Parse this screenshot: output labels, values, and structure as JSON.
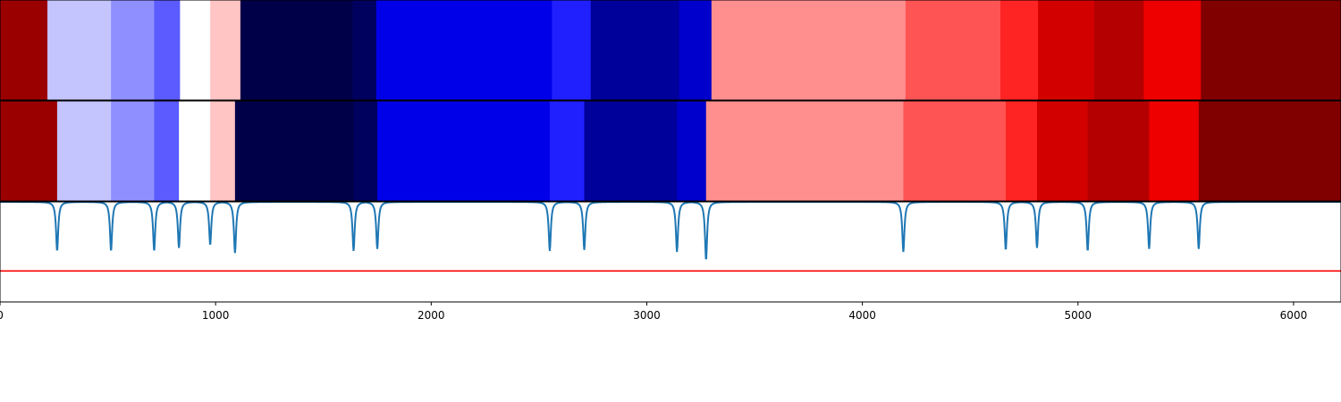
{
  "chart_data": [
    {
      "type": "heatmap",
      "title": "",
      "xlabel": "",
      "ylabel": "",
      "xlim": [
        0,
        6220
      ],
      "colormap": "seismic",
      "segments": [
        {
          "start": 0,
          "end": 220,
          "color": "#9b0000"
        },
        {
          "start": 220,
          "end": 515,
          "color": "#c4c4ff"
        },
        {
          "start": 515,
          "end": 715,
          "color": "#8f8fff"
        },
        {
          "start": 715,
          "end": 835,
          "color": "#5b5bff"
        },
        {
          "start": 835,
          "end": 975,
          "color": "#ffffff"
        },
        {
          "start": 975,
          "end": 1115,
          "color": "#ffc4c4"
        },
        {
          "start": 1115,
          "end": 1635,
          "color": "#000049"
        },
        {
          "start": 1635,
          "end": 1745,
          "color": "#00005f"
        },
        {
          "start": 1745,
          "end": 2560,
          "color": "#0000e8"
        },
        {
          "start": 2560,
          "end": 2740,
          "color": "#2020ff"
        },
        {
          "start": 2740,
          "end": 3150,
          "color": "#00009a"
        },
        {
          "start": 3150,
          "end": 3300,
          "color": "#0000cc"
        },
        {
          "start": 3300,
          "end": 4200,
          "color": "#ff8f8f"
        },
        {
          "start": 4200,
          "end": 4640,
          "color": "#ff5454"
        },
        {
          "start": 4640,
          "end": 4815,
          "color": "#ff2424"
        },
        {
          "start": 4815,
          "end": 5075,
          "color": "#d30000"
        },
        {
          "start": 5075,
          "end": 5305,
          "color": "#b40000"
        },
        {
          "start": 5305,
          "end": 5570,
          "color": "#ee0000"
        },
        {
          "start": 5570,
          "end": 6220,
          "color": "#800000"
        }
      ]
    },
    {
      "type": "heatmap",
      "title": "",
      "xlabel": "",
      "ylabel": "",
      "xlim": [
        0,
        6220
      ],
      "colormap": "seismic",
      "segments": [
        {
          "start": 0,
          "end": 265,
          "color": "#9b0000"
        },
        {
          "start": 265,
          "end": 515,
          "color": "#c4c4ff"
        },
        {
          "start": 515,
          "end": 715,
          "color": "#8f8fff"
        },
        {
          "start": 715,
          "end": 830,
          "color": "#5b5bff"
        },
        {
          "start": 830,
          "end": 975,
          "color": "#ffffff"
        },
        {
          "start": 975,
          "end": 1090,
          "color": "#ffc4c4"
        },
        {
          "start": 1090,
          "end": 1640,
          "color": "#000049"
        },
        {
          "start": 1640,
          "end": 1750,
          "color": "#00005f"
        },
        {
          "start": 1750,
          "end": 2550,
          "color": "#0000e8"
        },
        {
          "start": 2550,
          "end": 2710,
          "color": "#2020ff"
        },
        {
          "start": 2710,
          "end": 3140,
          "color": "#00009a"
        },
        {
          "start": 3140,
          "end": 3275,
          "color": "#0000cc"
        },
        {
          "start": 3275,
          "end": 4190,
          "color": "#ff8f8f"
        },
        {
          "start": 4190,
          "end": 4665,
          "color": "#ff5454"
        },
        {
          "start": 4665,
          "end": 4810,
          "color": "#ff2424"
        },
        {
          "start": 4810,
          "end": 5045,
          "color": "#d30000"
        },
        {
          "start": 5045,
          "end": 5330,
          "color": "#b40000"
        },
        {
          "start": 5330,
          "end": 5560,
          "color": "#ee0000"
        },
        {
          "start": 5560,
          "end": 6220,
          "color": "#800000"
        }
      ]
    },
    {
      "type": "line",
      "title": "",
      "xlabel": "",
      "ylabel": "",
      "xlim": [
        0,
        6220
      ],
      "ylim": [
        0,
        1
      ],
      "grid": false,
      "x_ticks": [
        0,
        1000,
        2000,
        3000,
        4000,
        5000,
        6000
      ],
      "x_tick_labels": [
        "0",
        "1000",
        "2000",
        "3000",
        "4000",
        "5000",
        "6000"
      ],
      "series": [
        {
          "color": "#1f77b4",
          "baseline": 1.0,
          "dips": [
            {
              "x": 265,
              "y": 0.51
            },
            {
              "x": 515,
              "y": 0.51
            },
            {
              "x": 715,
              "y": 0.51
            },
            {
              "x": 830,
              "y": 0.54
            },
            {
              "x": 975,
              "y": 0.57
            },
            {
              "x": 1090,
              "y": 0.49
            },
            {
              "x": 1640,
              "y": 0.51
            },
            {
              "x": 1750,
              "y": 0.53
            },
            {
              "x": 2550,
              "y": 0.51
            },
            {
              "x": 2710,
              "y": 0.52
            },
            {
              "x": 3140,
              "y": 0.5
            },
            {
              "x": 3275,
              "y": 0.42
            },
            {
              "x": 4190,
              "y": 0.5
            },
            {
              "x": 4665,
              "y": 0.52
            },
            {
              "x": 4810,
              "y": 0.54
            },
            {
              "x": 5045,
              "y": 0.51
            },
            {
              "x": 5330,
              "y": 0.53
            },
            {
              "x": 5560,
              "y": 0.53
            }
          ]
        },
        {
          "color": "#ff0000",
          "constant_y": 0.31
        }
      ]
    }
  ]
}
